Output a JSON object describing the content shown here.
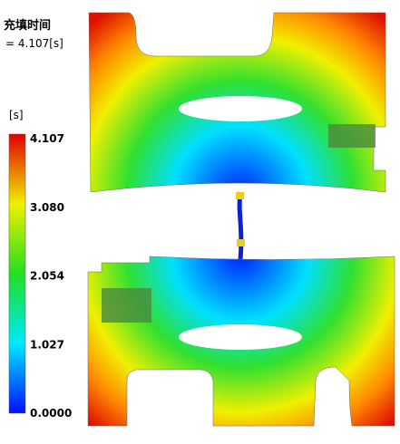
{
  "header": {
    "title": "充填时间",
    "value": "= 4.107[s]"
  },
  "legend": {
    "unit": "[s]",
    "ticks": [
      "4.107",
      "3.080",
      "2.054",
      "1.027",
      "0.0000"
    ]
  }
}
